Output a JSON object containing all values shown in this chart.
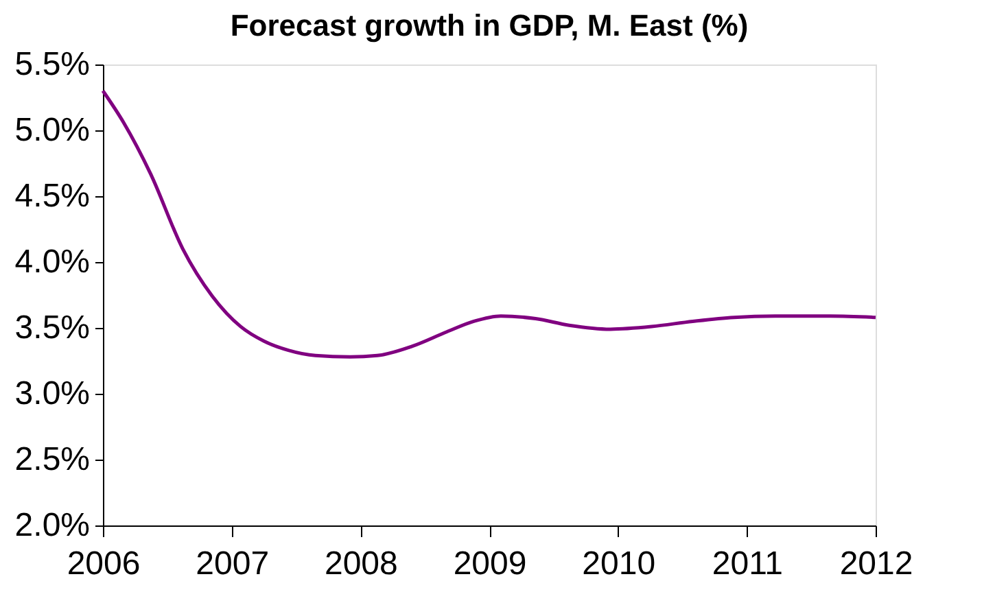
{
  "chart_data": {
    "type": "line",
    "title": "Forecast growth in GDP, M. East (%)",
    "x": [
      2006.0,
      2006.16,
      2006.37,
      2006.62,
      2006.85,
      2007.07,
      2007.25,
      2007.44,
      2007.65,
      2007.92,
      2008.13,
      2008.4,
      2008.67,
      2008.88,
      2009.09,
      2009.36,
      2009.62,
      2009.94,
      2010.26,
      2010.58,
      2010.9,
      2011.22,
      2011.65,
      2012.0
    ],
    "series": [
      {
        "color": "#800080",
        "values": [
          5.3,
          5.06,
          4.67,
          4.1,
          3.74,
          3.51,
          3.4,
          3.33,
          3.29,
          3.28,
          3.29,
          3.36,
          3.47,
          3.55,
          3.59,
          3.57,
          3.52,
          3.49,
          3.51,
          3.55,
          3.58,
          3.59,
          3.59,
          3.58
        ]
      }
    ],
    "xlim": [
      2006,
      2012
    ],
    "xticks": [
      2006,
      2007,
      2008,
      2009,
      2010,
      2011,
      2012
    ],
    "ylim": [
      2.0,
      5.5
    ],
    "yticks": [
      {
        "value": 2.0,
        "label": "2.0%"
      },
      {
        "value": 2.5,
        "label": "2.5%"
      },
      {
        "value": 3.0,
        "label": "3.0%"
      },
      {
        "value": 3.5,
        "label": "3.5%"
      },
      {
        "value": 4.0,
        "label": "4.0%"
      },
      {
        "value": 4.5,
        "label": "4.5%"
      },
      {
        "value": 5.0,
        "label": "5.0%"
      },
      {
        "value": 5.5,
        "label": "5.5%"
      }
    ],
    "grid": false,
    "legend": false
  }
}
